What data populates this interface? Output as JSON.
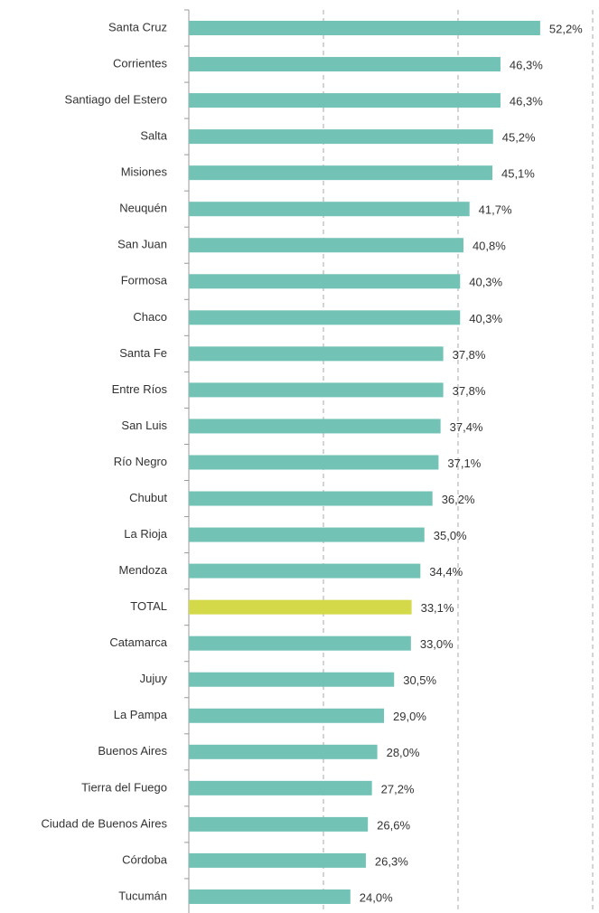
{
  "chart_data": {
    "type": "barh",
    "categories": [
      "Santa Cruz",
      "Corrientes",
      "Santiago del Estero",
      "Salta",
      "Misiones",
      "Neuquén",
      "San Juan",
      "Formosa",
      "Chaco",
      "Santa Fe",
      "Entre Ríos",
      "San Luis",
      "Río Negro",
      "Chubut",
      "La Rioja",
      "Mendoza",
      "TOTAL",
      "Catamarca",
      "Jujuy",
      "La Pampa",
      "Buenos Aires",
      "Tierra del Fuego",
      "Ciudad de Buenos Aires",
      "Córdoba",
      "Tucumán"
    ],
    "values": [
      52.2,
      46.3,
      46.3,
      45.2,
      45.1,
      41.7,
      40.8,
      40.3,
      40.3,
      37.8,
      37.8,
      37.4,
      37.1,
      36.2,
      35.0,
      34.4,
      33.1,
      33.0,
      30.5,
      29.0,
      28.0,
      27.2,
      26.6,
      26.3,
      24.0
    ],
    "value_labels": [
      "52,2%",
      "46,3%",
      "46,3%",
      "45,2%",
      "45,1%",
      "41,7%",
      "40,8%",
      "40,3%",
      "40,3%",
      "37,8%",
      "37,8%",
      "37,4%",
      "37,1%",
      "36,2%",
      "35,0%",
      "34,4%",
      "33,1%",
      "33,0%",
      "30,5%",
      "29,0%",
      "28,0%",
      "27,2%",
      "26,6%",
      "26,3%",
      "24,0%"
    ],
    "colors": [
      "#72c2b6",
      "#72c2b6",
      "#72c2b6",
      "#72c2b6",
      "#72c2b6",
      "#72c2b6",
      "#72c2b6",
      "#72c2b6",
      "#72c2b6",
      "#72c2b6",
      "#72c2b6",
      "#72c2b6",
      "#72c2b6",
      "#72c2b6",
      "#72c2b6",
      "#72c2b6",
      "#d4d94a",
      "#72c2b6",
      "#72c2b6",
      "#72c2b6",
      "#72c2b6",
      "#72c2b6",
      "#72c2b6",
      "#72c2b6",
      "#72c2b6"
    ],
    "xlim": [
      0,
      60
    ],
    "xticks": [
      20,
      40,
      60
    ],
    "grid": true
  }
}
